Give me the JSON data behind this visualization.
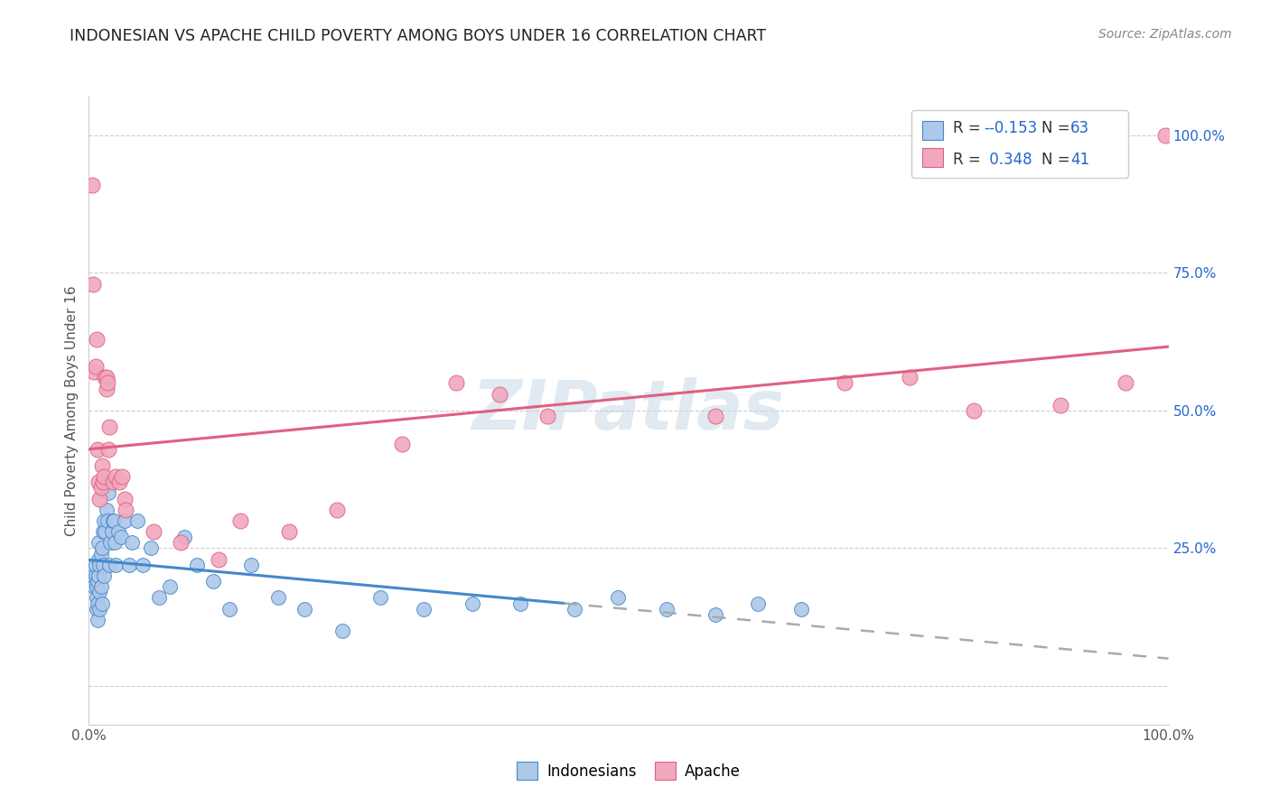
{
  "title": "INDONESIAN VS APACHE CHILD POVERTY AMONG BOYS UNDER 16 CORRELATION CHART",
  "source": "Source: ZipAtlas.com",
  "ylabel": "Child Poverty Among Boys Under 16",
  "xlim": [
    0,
    1.0
  ],
  "ylim": [
    -0.07,
    1.07
  ],
  "indonesian_color": "#adc8e8",
  "apache_color": "#f0a8be",
  "trend_indonesian_solid_color": "#4488cc",
  "trend_indonesian_dash_color": "#aaaaaa",
  "trend_apache_color": "#e06080",
  "watermark": "ZIPatlas",
  "background_color": "#ffffff",
  "grid_color": "#cccccc",
  "legend_r1": "-0.153",
  "legend_n1": "63",
  "legend_r2": "0.348",
  "legend_n2": "41",
  "text_color": "#333333",
  "val_color": "#2266cc",
  "indonesian_x": [
    0.004,
    0.005,
    0.006,
    0.006,
    0.007,
    0.007,
    0.007,
    0.008,
    0.008,
    0.008,
    0.009,
    0.009,
    0.009,
    0.01,
    0.01,
    0.01,
    0.011,
    0.011,
    0.012,
    0.012,
    0.013,
    0.013,
    0.014,
    0.014,
    0.015,
    0.016,
    0.017,
    0.018,
    0.019,
    0.02,
    0.021,
    0.022,
    0.023,
    0.024,
    0.025,
    0.027,
    0.03,
    0.033,
    0.037,
    0.04,
    0.045,
    0.05,
    0.057,
    0.065,
    0.075,
    0.088,
    0.1,
    0.115,
    0.13,
    0.15,
    0.175,
    0.2,
    0.235,
    0.27,
    0.31,
    0.355,
    0.4,
    0.45,
    0.49,
    0.535,
    0.58,
    0.62,
    0.66
  ],
  "indonesian_y": [
    0.2,
    0.18,
    0.2,
    0.22,
    0.14,
    0.16,
    0.18,
    0.12,
    0.15,
    0.19,
    0.2,
    0.23,
    0.26,
    0.14,
    0.17,
    0.22,
    0.18,
    0.24,
    0.15,
    0.25,
    0.22,
    0.28,
    0.3,
    0.2,
    0.28,
    0.32,
    0.3,
    0.35,
    0.22,
    0.26,
    0.28,
    0.3,
    0.3,
    0.26,
    0.22,
    0.28,
    0.27,
    0.3,
    0.22,
    0.26,
    0.3,
    0.22,
    0.25,
    0.16,
    0.18,
    0.27,
    0.22,
    0.19,
    0.14,
    0.22,
    0.16,
    0.14,
    0.1,
    0.16,
    0.14,
    0.15,
    0.15,
    0.14,
    0.16,
    0.14,
    0.13,
    0.15,
    0.14
  ],
  "apache_x": [
    0.003,
    0.004,
    0.005,
    0.006,
    0.007,
    0.008,
    0.009,
    0.01,
    0.011,
    0.012,
    0.013,
    0.014,
    0.015,
    0.016,
    0.016,
    0.017,
    0.018,
    0.019,
    0.022,
    0.025,
    0.028,
    0.031,
    0.033,
    0.034,
    0.06,
    0.085,
    0.12,
    0.14,
    0.185,
    0.23,
    0.29,
    0.34,
    0.38,
    0.425,
    0.58,
    0.7,
    0.76,
    0.82,
    0.9,
    0.96,
    0.997
  ],
  "apache_y": [
    0.91,
    0.73,
    0.57,
    0.58,
    0.63,
    0.43,
    0.37,
    0.34,
    0.36,
    0.4,
    0.37,
    0.38,
    0.56,
    0.56,
    0.54,
    0.55,
    0.43,
    0.47,
    0.37,
    0.38,
    0.37,
    0.38,
    0.34,
    0.32,
    0.28,
    0.26,
    0.23,
    0.3,
    0.28,
    0.32,
    0.44,
    0.55,
    0.53,
    0.49,
    0.49,
    0.55,
    0.56,
    0.5,
    0.51,
    0.55,
    1.0
  ]
}
